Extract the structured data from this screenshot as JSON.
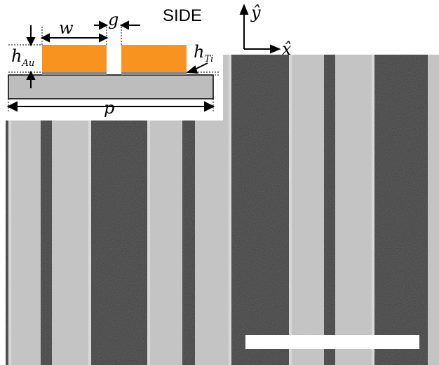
{
  "figure": {
    "inset": {
      "view_label": "SIDE",
      "labels": {
        "width": "w",
        "gap": "g",
        "period": "p",
        "h_au_base": "h",
        "h_au_sub": "Au",
        "h_ti_base": "h",
        "h_ti_sub": "Ti"
      }
    },
    "axes": {
      "y_label": "ŷ",
      "x_label": "x̂"
    }
  },
  "colors": {
    "gold": "#F7931E",
    "substrate": "#BDBDBD",
    "sem_dark": "#3a3a3a",
    "sem_light": "#c8c8c8",
    "scale_bar": "#ffffff"
  }
}
